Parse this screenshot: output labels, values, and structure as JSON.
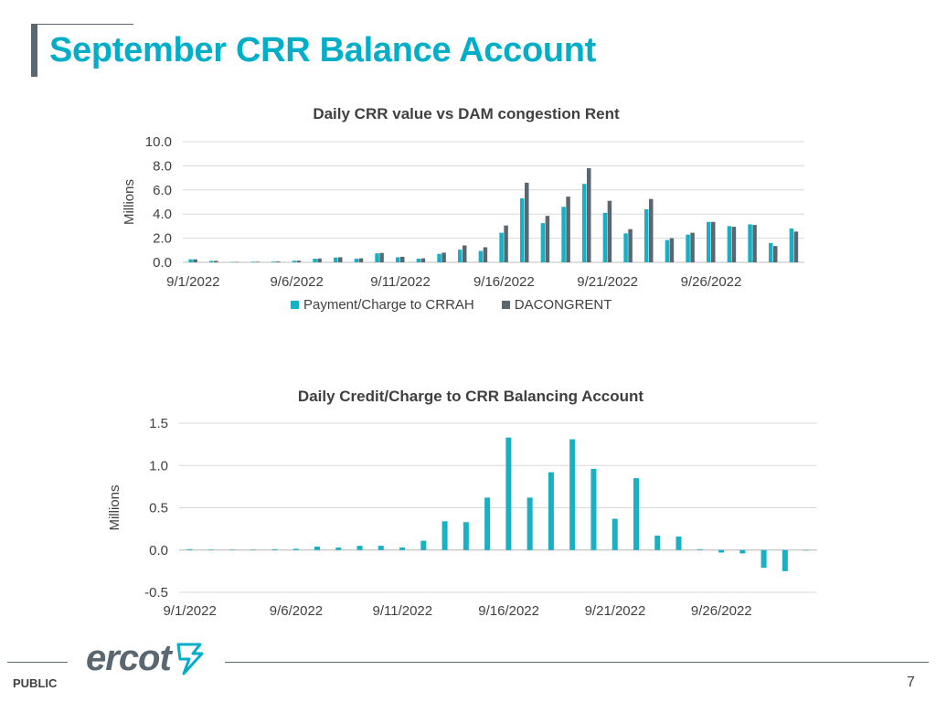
{
  "slide": {
    "title": "September CRR Balance Account",
    "footer_label": "PUBLIC",
    "page_number": "7",
    "logo_text": "ercot"
  },
  "colors": {
    "title": "#00aec7",
    "series1": "#17b0c4",
    "series2": "#5b6770",
    "grid": "#d9d9d9",
    "text": "#404040"
  },
  "chart_data": [
    {
      "type": "bar",
      "title": "Daily CRR value vs DAM congestion Rent",
      "xlabel": "",
      "ylabel": "Millions",
      "ylim": [
        0,
        10
      ],
      "yticks": [
        "0.0",
        "2.0",
        "4.0",
        "6.0",
        "8.0",
        "10.0"
      ],
      "x_tick_labels": [
        "9/1/2022",
        "9/6/2022",
        "9/11/2022",
        "9/16/2022",
        "9/21/2022",
        "9/26/2022"
      ],
      "x_tick_indices": [
        0,
        5,
        10,
        15,
        20,
        25
      ],
      "grid": true,
      "legend": "bottom",
      "categories": [
        "9/1/2022",
        "9/2/2022",
        "9/3/2022",
        "9/4/2022",
        "9/5/2022",
        "9/6/2022",
        "9/7/2022",
        "9/8/2022",
        "9/9/2022",
        "9/10/2022",
        "9/11/2022",
        "9/12/2022",
        "9/13/2022",
        "9/14/2022",
        "9/15/2022",
        "9/16/2022",
        "9/17/2022",
        "9/18/2022",
        "9/19/2022",
        "9/20/2022",
        "9/21/2022",
        "9/22/2022",
        "9/23/2022",
        "9/24/2022",
        "9/25/2022",
        "9/26/2022",
        "9/27/2022",
        "9/28/2022",
        "9/29/2022",
        "9/30/2022"
      ],
      "series": [
        {
          "name": "Payment/Charge to CRRAH",
          "values": [
            0.25,
            0.12,
            0.03,
            0.05,
            0.06,
            0.13,
            0.3,
            0.4,
            0.3,
            0.75,
            0.42,
            0.3,
            0.7,
            1.05,
            0.95,
            2.45,
            5.3,
            3.25,
            4.6,
            6.5,
            4.1,
            2.4,
            4.4,
            1.85,
            2.3,
            3.35,
            3.0,
            3.15,
            1.6,
            2.8
          ]
        },
        {
          "name": "DACONGRENT",
          "values": [
            0.25,
            0.12,
            0.03,
            0.05,
            0.07,
            0.14,
            0.32,
            0.42,
            0.33,
            0.78,
            0.46,
            0.33,
            0.8,
            1.4,
            1.25,
            3.05,
            6.6,
            3.85,
            5.45,
            7.8,
            5.1,
            2.75,
            5.25,
            2.0,
            2.45,
            3.35,
            2.95,
            3.1,
            1.35,
            2.55
          ]
        }
      ]
    },
    {
      "type": "bar",
      "title": "Daily Credit/Charge to CRR Balancing Account",
      "xlabel": "",
      "ylabel": "Millions",
      "ylim": [
        -0.5,
        1.5
      ],
      "yticks": [
        "-0.5",
        "0.0",
        "0.5",
        "1.0",
        "1.5"
      ],
      "x_tick_labels": [
        "9/1/2022",
        "9/6/2022",
        "9/11/2022",
        "9/16/2022",
        "9/21/2022",
        "9/26/2022"
      ],
      "x_tick_indices": [
        0,
        5,
        10,
        15,
        20,
        25
      ],
      "grid": true,
      "categories": [
        "9/1/2022",
        "9/2/2022",
        "9/3/2022",
        "9/4/2022",
        "9/5/2022",
        "9/6/2022",
        "9/7/2022",
        "9/8/2022",
        "9/9/2022",
        "9/10/2022",
        "9/11/2022",
        "9/12/2022",
        "9/13/2022",
        "9/14/2022",
        "9/15/2022",
        "9/16/2022",
        "9/17/2022",
        "9/18/2022",
        "9/19/2022",
        "9/20/2022",
        "9/21/2022",
        "9/22/2022",
        "9/23/2022",
        "9/24/2022",
        "9/25/2022",
        "9/26/2022",
        "9/27/2022",
        "9/28/2022",
        "9/29/2022",
        "9/30/2022"
      ],
      "series": [
        {
          "values": [
            0.01,
            0.005,
            0.005,
            0.005,
            0.01,
            0.015,
            0.04,
            0.03,
            0.05,
            0.05,
            0.03,
            0.11,
            0.34,
            0.33,
            0.62,
            1.33,
            0.62,
            0.92,
            1.31,
            0.96,
            0.37,
            0.85,
            0.17,
            0.16,
            0.01,
            -0.03,
            -0.04,
            -0.21,
            -0.25,
            0.0
          ]
        }
      ]
    }
  ]
}
